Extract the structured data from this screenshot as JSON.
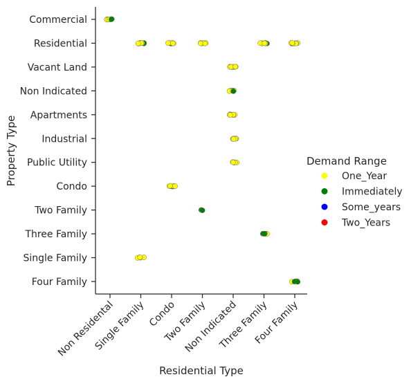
{
  "chart_data": {
    "type": "scatter",
    "subtype": "strip",
    "title": "",
    "xlabel": "Residential Type",
    "ylabel": "Property Type",
    "x_categories": [
      "Non Residental",
      "Single Family",
      "Condo",
      "Two Family",
      "Non Indicated",
      "Three Family",
      "Four Family"
    ],
    "y_categories": [
      "Commercial",
      "Residential",
      "Vacant Land",
      "Non Indicated",
      "Apartments",
      "Industrial",
      "Public Utility",
      "Condo",
      "Two Family",
      "Three Family",
      "Single Family",
      "Four Family"
    ],
    "legend": {
      "title": "Demand Range",
      "placement": "right",
      "entries": [
        {
          "label": "One_Year",
          "color": "#ffff00"
        },
        {
          "label": "Immediately",
          "color": "#008000"
        },
        {
          "label": "Some_years",
          "color": "#0000ff"
        },
        {
          "label": "Two_Years",
          "color": "#ff0000"
        }
      ]
    },
    "points": [
      {
        "x": "Non Residental",
        "y": "Commercial",
        "series": "One_Year",
        "count": 8
      },
      {
        "x": "Non Residental",
        "y": "Commercial",
        "series": "Immediately",
        "count": 2
      },
      {
        "x": "Single Family",
        "y": "Residential",
        "series": "Immediately",
        "count": 4
      },
      {
        "x": "Single Family",
        "y": "Residential",
        "series": "One_Year",
        "count": 6
      },
      {
        "x": "Condo",
        "y": "Residential",
        "series": "Immediately",
        "count": 4
      },
      {
        "x": "Condo",
        "y": "Residential",
        "series": "One_Year",
        "count": 6
      },
      {
        "x": "Two Family",
        "y": "Residential",
        "series": "One_Year",
        "count": 8
      },
      {
        "x": "Three Family",
        "y": "Residential",
        "series": "Immediately",
        "count": 4
      },
      {
        "x": "Three Family",
        "y": "Residential",
        "series": "One_Year",
        "count": 5
      },
      {
        "x": "Four Family",
        "y": "Residential",
        "series": "One_Year",
        "count": 10
      },
      {
        "x": "Non Indicated",
        "y": "Vacant Land",
        "series": "One_Year",
        "count": 8
      },
      {
        "x": "Non Indicated",
        "y": "Non Indicated",
        "series": "One_Year",
        "count": 6
      },
      {
        "x": "Non Indicated",
        "y": "Non Indicated",
        "series": "Immediately",
        "count": 1
      },
      {
        "x": "Non Indicated",
        "y": "Apartments",
        "series": "One_Year",
        "count": 10
      },
      {
        "x": "Non Indicated",
        "y": "Industrial",
        "series": "One_Year",
        "count": 7
      },
      {
        "x": "Non Indicated",
        "y": "Public Utility",
        "series": "One_Year",
        "count": 6
      },
      {
        "x": "Condo",
        "y": "Condo",
        "series": "Immediately",
        "count": 4
      },
      {
        "x": "Condo",
        "y": "Condo",
        "series": "One_Year",
        "count": 4
      },
      {
        "x": "Two Family",
        "y": "Two Family",
        "series": "Immediately",
        "count": 4
      },
      {
        "x": "Three Family",
        "y": "Three Family",
        "series": "One_Year",
        "count": 4
      },
      {
        "x": "Three Family",
        "y": "Three Family",
        "series": "Immediately",
        "count": 3
      },
      {
        "x": "Single Family",
        "y": "Single Family",
        "series": "One_Year",
        "count": 6
      },
      {
        "x": "Four Family",
        "y": "Four Family",
        "series": "One_Year",
        "count": 2
      },
      {
        "x": "Four Family",
        "y": "Four Family",
        "series": "Immediately",
        "count": 5
      }
    ]
  }
}
